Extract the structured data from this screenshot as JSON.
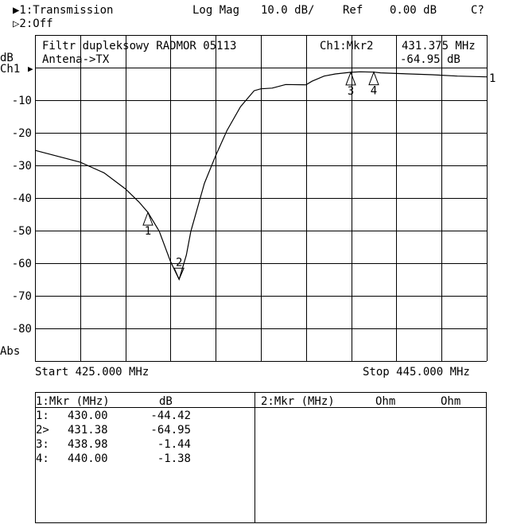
{
  "header": {
    "channel1": "▶1:Transmission",
    "format": "Log Mag",
    "scale": "10.0 dB/",
    "ref_label": "Ref",
    "ref_value": "0.00 dB",
    "cal_status": "C?",
    "channel2": "▷2:Off"
  },
  "annotation": {
    "title_line1": "Filtr dupleksowy RADMOR 05113",
    "title_line2": "Antena->TX",
    "active_marker": "Ch1:Mkr2",
    "active_marker_freq": "431.375 MHz",
    "active_marker_value": "-64.95 dB"
  },
  "axis": {
    "unit": "dB",
    "channel": "Ch1",
    "ref_arrow": "▶",
    "bottom_label": "Abs",
    "trace_label": "1",
    "start": "Start 425.000 MHz",
    "stop": "Stop 445.000 MHz"
  },
  "marker_table": {
    "left_header": {
      "col1": "1:Mkr (MHz)",
      "col2": "dB"
    },
    "right_header": {
      "col1": "2:Mkr (MHz)",
      "col2": "Ohm",
      "col3": "Ohm"
    },
    "rows": [
      {
        "id": "1:",
        "freq": "430.00",
        "value": "-44.42"
      },
      {
        "id": "2>",
        "freq": "431.38",
        "value": "-64.95"
      },
      {
        "id": "3:",
        "freq": "438.98",
        "value": "-1.44"
      },
      {
        "id": "4:",
        "freq": "440.00",
        "value": "-1.38"
      }
    ]
  },
  "chart_data": {
    "type": "line",
    "title": "",
    "xlabel": "",
    "ylabel": "dB",
    "xlim": [
      425,
      445
    ],
    "ylim": [
      -90,
      10
    ],
    "x_divisions": 10,
    "y_divisions": 10,
    "grid": true,
    "reference_level_db": 0,
    "y_tick_labels": [
      "-10",
      "-20",
      "-30",
      "-40",
      "-50",
      "-60",
      "-70",
      "-80"
    ],
    "y_tick_values": [
      -10,
      -20,
      -30,
      -40,
      -50,
      -60,
      -70,
      -80
    ],
    "series": [
      {
        "x": [
          425,
          427,
          428.06,
          429,
          429.6,
          430,
          430.5,
          431,
          431.38,
          431.7,
          431.9,
          432.5,
          433,
          433.5,
          434.1,
          434.7,
          435,
          435.5,
          436.1,
          437,
          437.26,
          437.8,
          438.3,
          438.98,
          439.4,
          440,
          440.3,
          441,
          442.6,
          443.7,
          445
        ],
        "y": [
          -25.4,
          -29.0,
          -32.3,
          -37.2,
          -41.2,
          -44.42,
          -50.2,
          -59.5,
          -64.95,
          -57.5,
          -50.2,
          -35.5,
          -27,
          -19.3,
          -12,
          -7.1,
          -6.5,
          -6.3,
          -5.2,
          -5.3,
          -4.2,
          -2.6,
          -1.95,
          -1.44,
          -1.3,
          -1.38,
          -1.6,
          -1.8,
          -2.2,
          -2.6,
          -2.85
        ]
      }
    ],
    "markers": [
      {
        "label": "1",
        "freq_mhz": 430.0,
        "value_db": -44.42,
        "active": false
      },
      {
        "label": "2",
        "freq_mhz": 431.38,
        "value_db": -64.95,
        "active": true
      },
      {
        "label": "3",
        "freq_mhz": 438.98,
        "value_db": -1.44,
        "active": false
      },
      {
        "label": "4",
        "freq_mhz": 440.0,
        "value_db": -1.38,
        "active": false
      }
    ]
  }
}
